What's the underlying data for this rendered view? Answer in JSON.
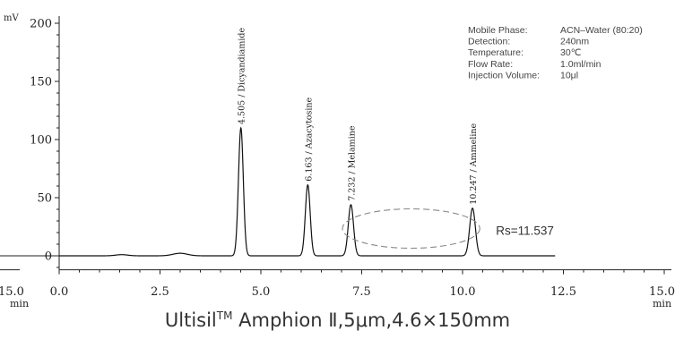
{
  "chart_data": {
    "type": "line",
    "title": "",
    "ylabel": "mV",
    "xlabel_left": "min",
    "xlabel_right": "min",
    "left_truncated_tick": "15.0",
    "xlim": [
      0,
      15
    ],
    "ylim": [
      -12,
      200
    ],
    "x_ticks": [
      {
        "value": 0,
        "label": "0.0"
      },
      {
        "value": 2.5,
        "label": "2.5"
      },
      {
        "value": 5,
        "label": "5.0"
      },
      {
        "value": 7.5,
        "label": "7.5"
      },
      {
        "value": 10,
        "label": "10.0"
      },
      {
        "value": 12.5,
        "label": "12.5"
      },
      {
        "value": 15,
        "label": "15.0"
      }
    ],
    "y_ticks": [
      {
        "value": 0,
        "label": "0"
      },
      {
        "value": 50,
        "label": "50"
      },
      {
        "value": 100,
        "label": "100"
      },
      {
        "value": 150,
        "label": "150"
      },
      {
        "value": 200,
        "label": "200"
      }
    ],
    "trace_end": 12.3,
    "peaks": [
      {
        "rt": 4.505,
        "height": 110,
        "width": 0.06,
        "label": "4.505 / Dicyandiamide"
      },
      {
        "rt": 6.163,
        "height": 61,
        "width": 0.06,
        "label": "6.163 / Azacytosine"
      },
      {
        "rt": 7.232,
        "height": 44,
        "width": 0.065,
        "label": "7.232 / Melamine"
      },
      {
        "rt": 10.247,
        "height": 41,
        "width": 0.07,
        "label": "10.247 / Ammeline"
      }
    ],
    "baseline_bumps": [
      {
        "rt": 1.55,
        "height": 1.0,
        "width": 0.15
      },
      {
        "rt": 3.0,
        "height": 2.2,
        "width": 0.18
      }
    ],
    "resolution_annotation": {
      "text": "Rs=11.537",
      "x_from": 7.2,
      "x_to": 10.25,
      "y_center": 25
    },
    "conditions": [
      {
        "key": "Mobile Phase:",
        "value": "ACN–Water (80:20)"
      },
      {
        "key": "Detection:",
        "value": "240nm"
      },
      {
        "key": "Temperature:",
        "value": "30℃"
      },
      {
        "key": "Flow Rate:",
        "value": "1.0ml/min"
      },
      {
        "key": "Injection Volume:",
        "value": "10μl"
      }
    ],
    "grid": false,
    "colors": {
      "trace": "#111111",
      "axis": "#222222",
      "ellipse": "#888888",
      "text": "#333333"
    }
  },
  "caption": {
    "prefix": "Ultisil",
    "tm": "TM",
    "suffix": " Amphion Ⅱ,5μm,4.6×150mm"
  }
}
